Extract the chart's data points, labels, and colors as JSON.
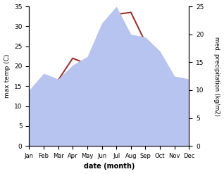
{
  "months": [
    "Jan",
    "Feb",
    "Mar",
    "Apr",
    "May",
    "Jun",
    "Jul",
    "Aug",
    "Sep",
    "Oct",
    "Nov",
    "Dec"
  ],
  "month_x": [
    1,
    2,
    3,
    4,
    5,
    6,
    7,
    8,
    9,
    10,
    11,
    12
  ],
  "temp": [
    10.5,
    13.5,
    16.5,
    22.0,
    20.5,
    21.0,
    33.0,
    33.5,
    26.0,
    19.0,
    13.0,
    11.5
  ],
  "precip": [
    10.0,
    13.0,
    12.0,
    14.5,
    16.0,
    22.0,
    25.0,
    20.0,
    19.5,
    17.0,
    12.5,
    12.0
  ],
  "temp_color": "#993333",
  "precip_fill_color": "#b8c4f0",
  "temp_ylim": [
    0,
    35
  ],
  "precip_ylim": [
    0,
    25
  ],
  "temp_yticks": [
    0,
    5,
    10,
    15,
    20,
    25,
    30,
    35
  ],
  "precip_yticks": [
    0,
    5,
    10,
    15,
    20,
    25
  ],
  "ylabel_left": "max temp (C)",
  "ylabel_right": "med. precipitation (kg/m2)",
  "xlabel": "date (month)",
  "fig_width": 3.18,
  "fig_height": 2.47,
  "dpi": 100
}
